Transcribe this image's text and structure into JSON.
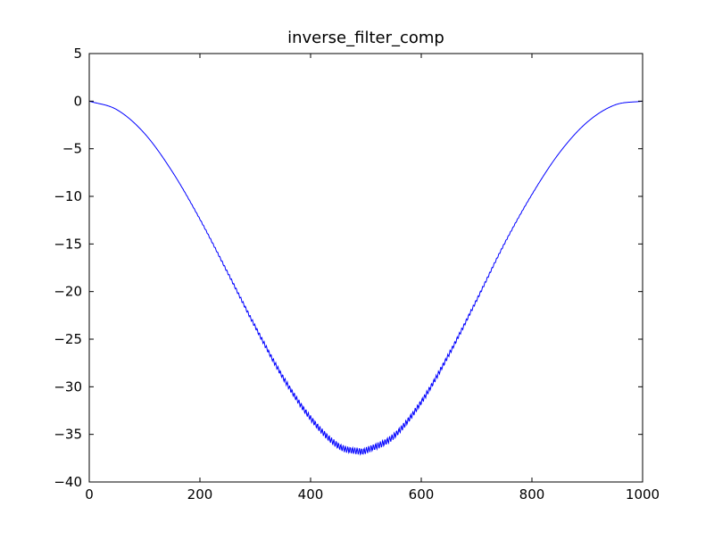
{
  "chart_data": {
    "type": "line",
    "title": "inverse_filter_comp",
    "xlabel": "",
    "ylabel": "",
    "xlim": [
      0,
      1000
    ],
    "ylim": [
      -40,
      5
    ],
    "xticks": [
      0,
      200,
      400,
      600,
      800,
      1000
    ],
    "xtick_labels": [
      "0",
      "200",
      "400",
      "600",
      "800",
      "1000"
    ],
    "yticks": [
      5,
      0,
      -5,
      -10,
      -15,
      -20,
      -25,
      -30,
      -35,
      -40
    ],
    "ytick_labels": [
      "5",
      "0",
      "−5",
      "−10",
      "−15",
      "−20",
      "−25",
      "−30",
      "−35",
      "−40"
    ],
    "grid": false,
    "legend": "none",
    "series": [
      {
        "color": "#0000ff",
        "x": [
          0,
          50,
          100,
          150,
          200,
          250,
          300,
          350,
          400,
          450,
          490,
          500,
          550,
          600,
          650,
          700,
          750,
          800,
          850,
          900,
          950,
          1000
        ],
        "values": [
          0,
          -0.9,
          -3.4,
          -7.4,
          -12.4,
          -18.0,
          -23.7,
          -29.0,
          -33.3,
          -36.2,
          -36.8,
          -36.7,
          -35.2,
          -31.6,
          -26.6,
          -20.9,
          -15.0,
          -9.8,
          -5.4,
          -2.2,
          -0.4,
          0
        ]
      }
    ]
  }
}
